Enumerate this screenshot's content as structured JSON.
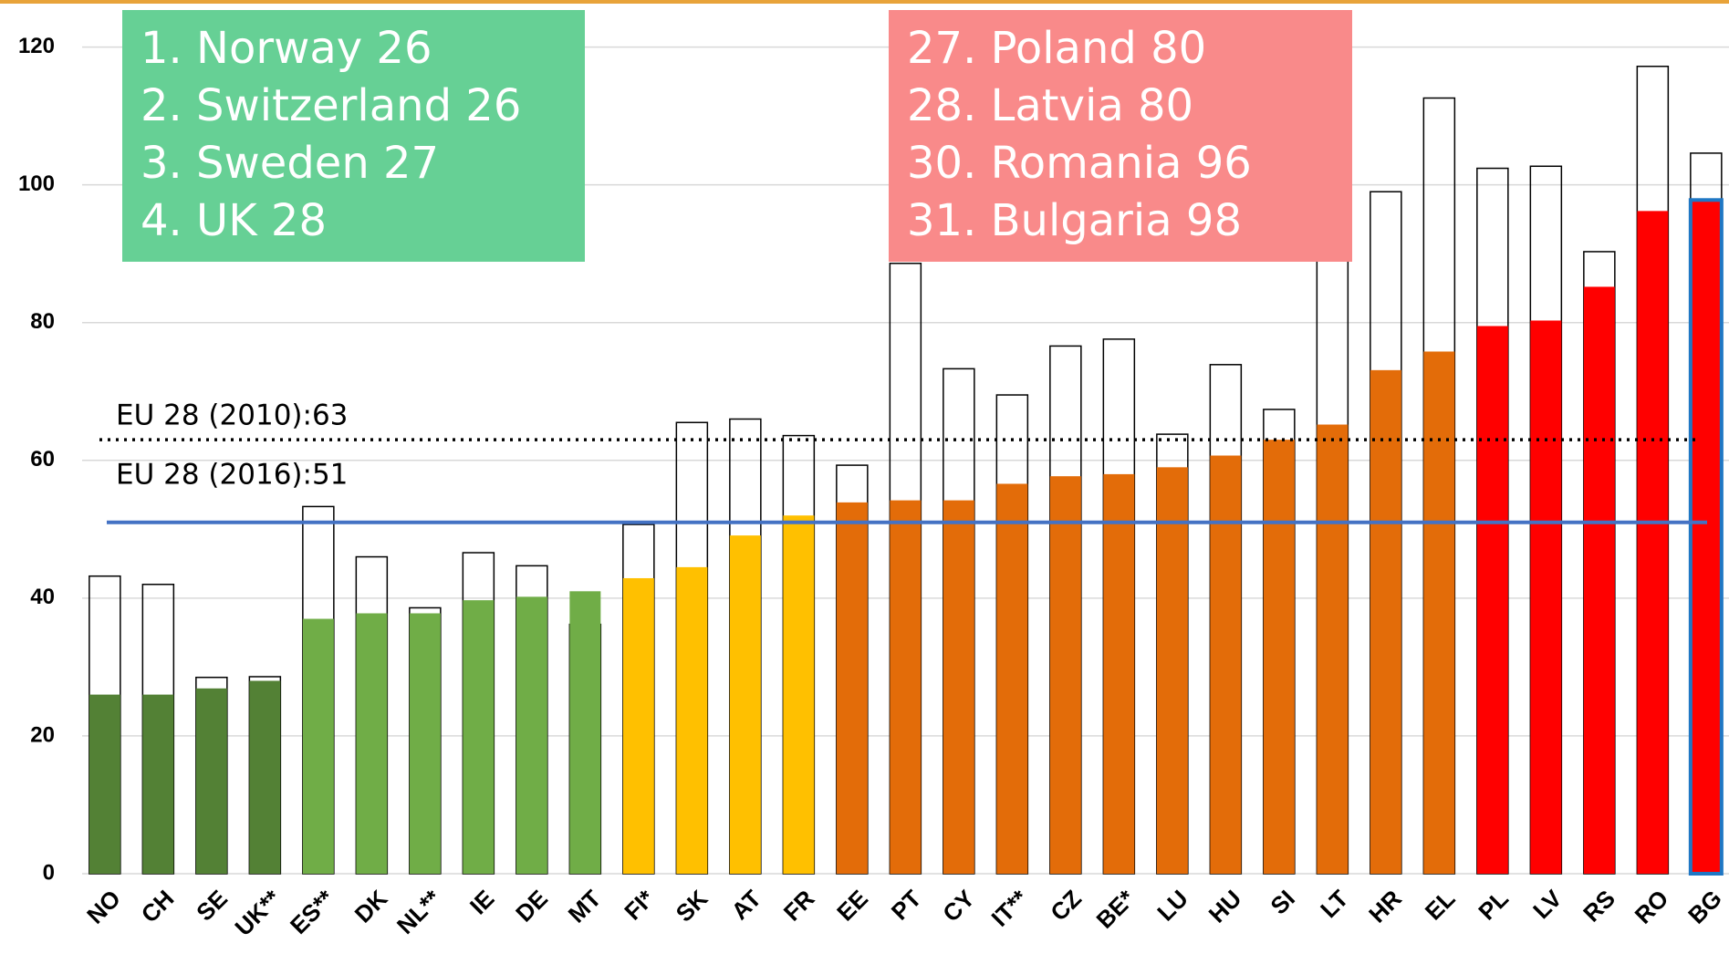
{
  "chart_data": {
    "type": "bar",
    "categories": [
      "NO",
      "CH",
      "SE",
      "UK**",
      "ES**",
      "DK",
      "NL**",
      "IE",
      "DE",
      "MT",
      "FI*",
      "SK",
      "AT",
      "FR",
      "EE",
      "PT",
      "CY",
      "IT**",
      "CZ",
      "BE*",
      "LU",
      "HU",
      "SI",
      "LT",
      "HR",
      "EL",
      "PL",
      "LV",
      "RS",
      "RO",
      "BG"
    ],
    "series": [
      {
        "style": "outline",
        "color": "#000000",
        "values": [
          43.2,
          42,
          28.5,
          28.6,
          53.3,
          46,
          38.6,
          46.6,
          44.7,
          36.2,
          50.7,
          65.5,
          66,
          63.6,
          59.3,
          88.6,
          73.3,
          69.5,
          76.6,
          77.6,
          63.8,
          73.9,
          67.4,
          95,
          99,
          112.6,
          102.4,
          102.7,
          90.3,
          117.2,
          104.6
        ]
      },
      {
        "style": "filled",
        "colors": [
          "#538135",
          "#538135",
          "#538135",
          "#538135",
          "#70ad47",
          "#70ad47",
          "#70ad47",
          "#70ad47",
          "#70ad47",
          "#70ad47",
          "#ffc000",
          "#ffc000",
          "#ffc000",
          "#ffc000",
          "#e36c09",
          "#e36c09",
          "#e36c09",
          "#e36c09",
          "#e36c09",
          "#e36c09",
          "#e36c09",
          "#e36c09",
          "#e36c09",
          "#e36c09",
          "#e36c09",
          "#e36c09",
          "#ff0000",
          "#ff0000",
          "#ff0000",
          "#ff0000",
          "#ff0000"
        ],
        "highlight": {
          "index": 30,
          "color": "#1f77c4"
        },
        "values": [
          26,
          26,
          26.9,
          28,
          37,
          37.8,
          37.8,
          39.7,
          40.2,
          41,
          42.9,
          44.5,
          49.1,
          52,
          53.9,
          54.2,
          54.2,
          56.6,
          57.7,
          58,
          59,
          60.7,
          63,
          65.2,
          73.1,
          75.8,
          79.5,
          80.3,
          85.2,
          96.2,
          97.8
        ]
      }
    ],
    "ylim": [
      0,
      120
    ],
    "yticks": [
      0,
      20,
      40,
      60,
      80,
      100,
      120
    ],
    "grid": true,
    "reference_lines": [
      {
        "label": "EU 28 (2010):63",
        "value": 63,
        "style": "dotted",
        "color": "#000000"
      },
      {
        "label": "EU 28 (2016):51",
        "value": 51,
        "style": "solid",
        "color": "#4472c4"
      }
    ],
    "annotations": [
      {
        "color": "#66d095",
        "lines": [
          "1. Norway 26",
          "2. Switzerland 26",
          "3. Sweden 27",
          "4. UK 28"
        ]
      },
      {
        "color": "#f98a8a",
        "lines": [
          "27. Poland 80",
          "28. Latvia 80",
          "30. Romania 96",
          "31. Bulgaria 98"
        ]
      }
    ]
  }
}
